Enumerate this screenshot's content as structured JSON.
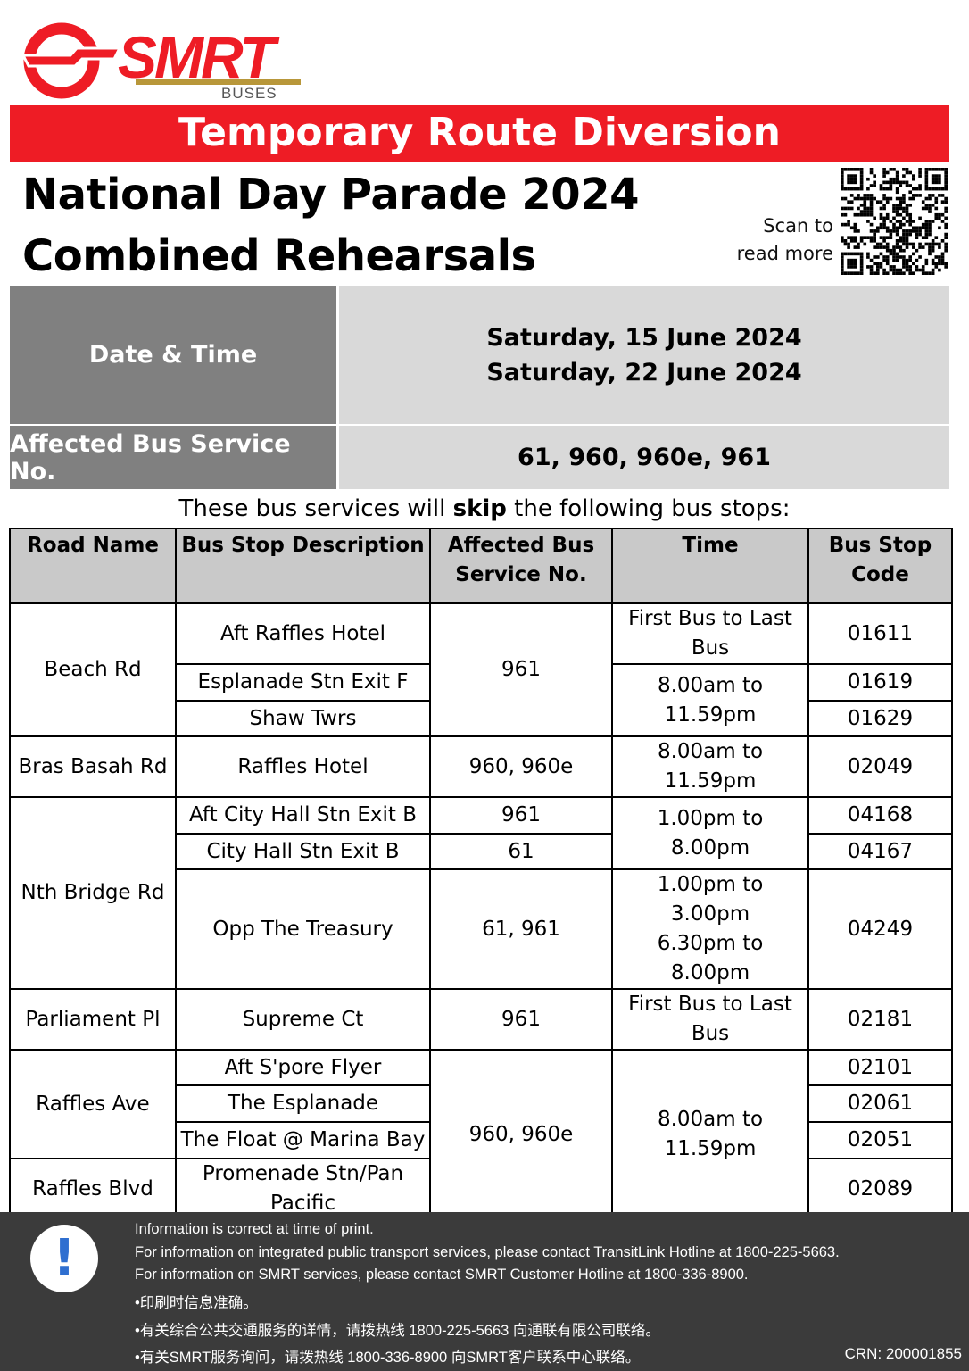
{
  "brand": {
    "name": "SMRT",
    "sub": "BUSES",
    "red": "#ee1c25",
    "gold": "#b8973a"
  },
  "banner": "Temporary Route Diversion",
  "headline": [
    "National Day Parade 2024",
    "Combined Rehearsals"
  ],
  "scan": [
    "Scan to",
    "read more"
  ],
  "info": {
    "date_label": "Date & Time",
    "dates": [
      "Saturday, 15 June 2024",
      "Saturday, 22 June 2024"
    ],
    "service_label": "Affected Bus Service No.",
    "services": "61, 960, 960e, 961"
  },
  "skip_text": {
    "pre": "These bus services will ",
    "bold": "skip",
    "post": " the following bus stops:"
  },
  "table": {
    "headers": [
      "Road Name",
      "Bus Stop Description",
      "Affected Bus Service No.",
      "Time",
      "Bus Stop Code"
    ],
    "roads": [
      "Beach Rd",
      "Bras Basah Rd",
      "Nth Bridge Rd",
      "Parliament Pl",
      "Raffles Ave",
      "Raffles Blvd"
    ],
    "stops": [
      "Aft Raffles Hotel",
      "Esplanade Stn Exit F",
      "Shaw Twrs",
      "Raffles Hotel",
      "Aft City Hall Stn Exit B",
      "City Hall Stn Exit B",
      "Opp The Treasury",
      "Supreme Ct",
      "Aft S'pore Flyer",
      "The Esplanade",
      "The Float @ Marina Bay",
      "Promenade Stn/Pan Pacific"
    ],
    "services": [
      "961",
      "960, 960e",
      "961",
      "61",
      "61, 961",
      "961",
      "960, 960e"
    ],
    "times": [
      "First Bus to Last Bus",
      "8.00am to 11.59pm",
      "8.00am to 11.59pm",
      "1.00pm to 8.00pm",
      "1.00pm to 3.00pm",
      "6.30pm to 8.00pm",
      "First Bus to Last Bus",
      "8.00am to 11.59pm"
    ],
    "codes": [
      "01611",
      "01619",
      "01629",
      "02049",
      "04168",
      "04167",
      "04249",
      "02181",
      "02101",
      "02061",
      "02051",
      "02089"
    ]
  },
  "footer": {
    "lines": [
      "Information is correct at time of print.",
      "For information on integrated public transport services, please contact TransitLink Hotline at 1800-225-5663.",
      "For information on SMRT services, please contact SMRT Customer Hotline at 1800-336-8900.",
      "•印刷时信息准确。",
      "•有关综合公共交通服务的详情，请拨热线 1800-225-5663 向通联有限公司联络。",
      "•有关SMRT服务询问，请拨热线 1800-336-8900 向SMRT客户联系中心联络。"
    ],
    "crn": "CRN: 200001855",
    "icon": "exclamation-icon"
  }
}
